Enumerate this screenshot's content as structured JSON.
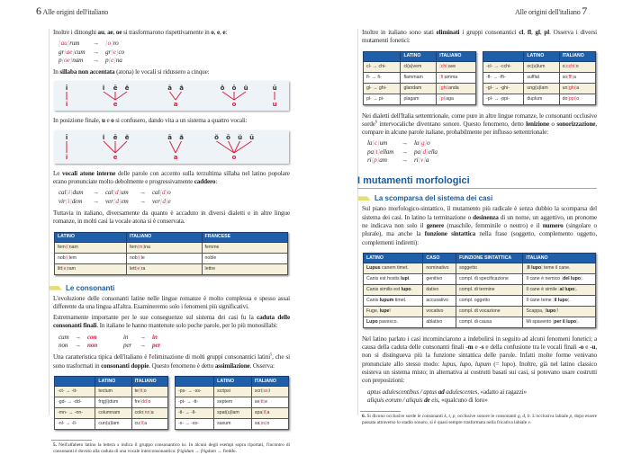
{
  "left_page": {
    "page_number": "6",
    "running_title": "Alle origini dell'italiano",
    "p1": "Inoltre i dittonghi *au*, *ae*, *oe* si trasformarono rispettivamente in *o*, *e*, *e*:",
    "ex1": [
      [
        "[au]rum",
        "[o]ro"
      ],
      [
        "gr[ae]cum",
        "gr[e]co"
      ],
      [
        "p[oe]nam",
        "p[e]na"
      ]
    ],
    "p2": "In *sillaba non accentata* (atona) le vocali si ridussero a cinque:",
    "diagram1": [
      {
        "from": [
          "ī"
        ],
        "to": "i"
      },
      {
        "from": [
          "ĭ",
          "ē",
          "ĕ"
        ],
        "to": "e"
      },
      {
        "from": [
          "ā",
          "ă"
        ],
        "to": "a"
      },
      {
        "from": [
          "ŏ",
          "ō",
          "ŭ"
        ],
        "to": "o"
      },
      {
        "from": [
          "ū"
        ],
        "to": "u"
      }
    ],
    "p3": "In posizione finale, *u* e *o* si confusero, dando vita a un sistema a quattro vocali:",
    "diagram2": [
      {
        "from": [
          "ī"
        ],
        "to": "i"
      },
      {
        "from": [
          "ĭ",
          "ē",
          "ĕ"
        ],
        "to": "e"
      },
      {
        "from": [
          "ā",
          "ă"
        ],
        "to": "a"
      },
      {
        "from": [
          "ŏ",
          "ō",
          "ŭ",
          "ū"
        ],
        "to": "o"
      }
    ],
    "p4": "Le *vocali atone interne* delle parole con accento sulla terzultima sillaba nel latino popolare erano pronunciate molto debolmente e progressivamente *caddero*:",
    "ex2": [
      [
        "cal[i]dum",
        "cal[d]um",
        "cal[d]o"
      ],
      [
        "vir[i]dem",
        "ver[d]em",
        "ver[d]e"
      ]
    ],
    "p5": "Tuttavia in italiano, diversamente da quanto è accaduto in diversi dialetti e in altre lingue romanze, in molti casi la vocale atona si è conservata.",
    "table1": {
      "headers": [
        "LATINO",
        "ITALIANO",
        "FRANCESE"
      ],
      "rows": [
        [
          "fem[i]nam",
          "fem[m]ina",
          "femme"
        ],
        [
          "nob[i]lem",
          "nob[i]le",
          "noble"
        ],
        [
          "litt[e]ram",
          "lett[e]ra",
          "lettre"
        ]
      ]
    },
    "section_title": "Le consonanti",
    "p6": "L'evoluzione delle consonanti latine nelle lingue romanze è molto complessa e spesso assai differente da una lingua all'altra. Esamineremo solo i fenomeni più significativi.",
    "p7": "Estremamente importante per le sue conseguenze sul sistema dei casi fu la *caduta delle consonanti finali*. In italiano le hanno mantenute solo poche parole, per lo più monosillabi:",
    "ex3": [
      [
        "cum",
        "con",
        "in",
        "in"
      ],
      [
        "non",
        "non",
        "per",
        "per"
      ]
    ],
    "p8": "Una caratteristica tipica dell'italiano è l'eliminazione di molti gruppi consonantici latini^5, che si sono trasformati in *consonanti doppie*. Questo fenomeno è detto *assimilazione*. Osserva:",
    "table2": {
      "headers": [
        "",
        "LATINO",
        "ITALIANO"
      ],
      "rows": [
        [
          "-ct-  →  -tt-",
          "tectum",
          "te[tt]o"
        ],
        [
          "-gd-  →  -dd-",
          "frig(i)dum",
          "fre[dd]o"
        ],
        [
          "-mn-  →  -nn-",
          "columnam",
          "colo[nn]a"
        ],
        [
          "-nl-  →  -ll-",
          "cun(u)lam",
          "cu[ll]a"
        ]
      ]
    },
    "table3": {
      "headers": [
        "",
        "LATINO",
        "ITALIANO"
      ],
      "rows": [
        [
          "-ps-  →  -ss-",
          "scripsi",
          "scri[ss]i"
        ],
        [
          "-pt-  →  -tt-",
          "septem",
          "se[tt]e"
        ],
        [
          "-tl-  →  -ll-",
          "spat(u)lam",
          "spa[ll]a"
        ],
        [
          "-x-  →  -ss-",
          "saxum",
          "sa[ss]o"
        ]
      ]
    },
    "footnote": "*5.* Nell'alfabeto latino la lettera _x_ indica il gruppo consonantico _ks_. In alcuni degli esempi sopra riportati, l'incontro di consonanti è dovuto alla caduta di una vocale interconsonantica: _frigidum_ → _frigdum_ → freddo."
  },
  "right_page": {
    "page_number": "7",
    "running_title": "Alle origini dell'italiano",
    "p1": "Inoltre in italiano sono stati *eliminati* i gruppi consonantici *cl*, *fl*, *gl*, *pl*. Osserva i diversi mutamenti fonetici:",
    "table1": {
      "headers": [
        "",
        "LATINO",
        "ITALIANO"
      ],
      "rows": [
        [
          "cl-  →  chi-",
          "cl(a)vem",
          "[chi]ave"
        ],
        [
          "fl-  →  fi-",
          "flammam",
          "[fi]amma"
        ],
        [
          "gl-  →  ghi-",
          "glandam",
          "[ghi]anda"
        ],
        [
          "pl-  →  pi-",
          "plagam",
          "[pi]aga"
        ]
      ]
    },
    "table2": {
      "headers": [
        "",
        "LATINO",
        "ITALIANO"
      ],
      "rows": [
        [
          "-cl-  →  -cchi-",
          "oc(u)lum",
          "o[cchi]o"
        ],
        [
          "-fl-  →  -ffi-",
          "sufflat",
          "so[ffi]a"
        ],
        [
          "-gl-  →  -ghi-",
          "ung(u)lam",
          "un[ghi]a"
        ],
        [
          "-pl-  →  -ppi-",
          "duplum",
          "do[ppi]o"
        ]
      ]
    },
    "p2": "Nei dialetti dell'Italia settentrionale, come pure in altre lingue romanze, le consonanti occlusive sorde^6 intervocaliche diventano sonore. Questo fenomeno, detto *lenizione* o *sonorizzazione*, compare in alcune parole italiane, probabilmente per influsso settentrionale:",
    "ex1": [
      [
        "la[c]um",
        "la[g]o"
      ],
      [
        "pa[t]ellam",
        "pa[d]ella"
      ],
      [
        "ri[p]am",
        "ri[v]a"
      ]
    ],
    "chapter_title": "I mutamenti morfologici",
    "section_title": "La scomparsa del sistema dei casi",
    "p3": "Sul piano morfologico-sintattico, il mutamento più radicale è senza dubbio la scomparsa del sistema dei casi. In latino la terminazione o *desinenza* di un nome, un aggettivo, un pronome ne indicava non solo il *genere* (maschile, femminile o neutro) e il *numero* (singolare o plurale), ma anche la *funzione sintattica* nella frase (soggetto, complemento oggetto, complementi indiretti):",
    "table3": {
      "headers": [
        "LATINO",
        "CASO",
        "FUNZIONE SINTATTICA",
        "ITALIANO"
      ],
      "rows": [
        [
          "*Lupus* canem timet.",
          "nominativo",
          "soggetto",
          "[*Il lupo*] teme il cane."
        ],
        [
          "Canis est hostis *lupi*.",
          "genitivo",
          "compl. di specificazione",
          "Il cane è nemico [*del lupo*]."
        ],
        [
          "Canis similis est *lupo*.",
          "dativo",
          "compl. di termine",
          "Il cane è simile [*al lupo*]."
        ],
        [
          "Canis *lupum* timet.",
          "accusativo",
          "compl. oggetto",
          "Il cane teme [*il lupo*]."
        ],
        [
          "Fuge, *lupe*!",
          "vocativo",
          "compl. di vocazione",
          "Scappa, [*lupo*]!"
        ],
        [
          "*Lupo* pavesco.",
          "ablativo",
          "compl. di causa",
          "Mi spavento [*per il lupo*]."
        ]
      ]
    },
    "p4": "Nel latino parlato i casi incominciarono a indebolirsi in seguito ad alcuni fenomeni fonetici; a causa della caduta delle consonanti finali *-m* e *-s* e della confusione tra le vocali finali *-o* e *-u*, non si distingueva più la funzione sintattica delle parole. Infatti molte forme venivano pronunciate allo stesso modo: _lupus, lupo, lupum_ (= lupo). Inoltre, già nel latino classico esisteva un sistema misto; in alternativa ai costrutti basati sui casi, si potevano usare costrutti con preposizioni:",
    "ex2": [
      "_aptus adulescentibus / aptus_ *_ad_* _adulescentes_, «adatto ai ragazzi»",
      "_aliquis eorum / aliquis_ *_de_* _eis_, «qualcuno di loro»"
    ],
    "footnote": "*6.* Si dicono occlusive sorde le consonanti _k, t, p_, occlusive sonore le consonanti _g, d, b_. L'occlusiva labiale _p_, dopo essere passata attraverso lo stadio sonoro, si è quasi sempre trasformata nella fricativa labiale _v_."
  },
  "colors": {
    "accent_blue": "#1f5ea8",
    "highlight_red": "#d9223f",
    "row_alt": "#f6f1dc",
    "diagram_bg": "#eef3f8",
    "marker_yellow": "#e4df74"
  }
}
